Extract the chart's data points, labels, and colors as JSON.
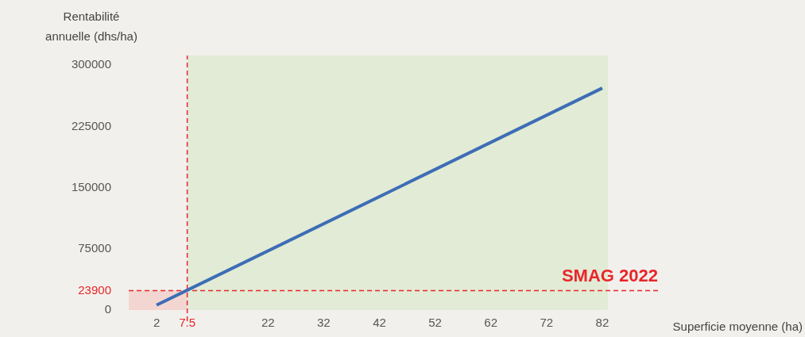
{
  "chart_data": {
    "type": "line",
    "xlabel": "Superficie moyenne (ha)",
    "ylabel": "Rentabilité annuelle (dhs/ha)",
    "x": [
      2,
      82
    ],
    "series": [
      {
        "color": "#3d6db5",
        "values": [
          6000,
          272000
        ]
      }
    ],
    "xlim": [
      -3,
      92
    ],
    "xticks": [
      2,
      7.5,
      22,
      32,
      42,
      52,
      62,
      72,
      82
    ],
    "ylim": [
      0,
      312000
    ],
    "yticks": [
      0,
      23900,
      75000,
      150000,
      225000,
      300000
    ],
    "ref_lines": [
      {
        "axis": "y",
        "value": 23900,
        "label": "SMAG 2022",
        "color": "#e8262a",
        "line_style": "dashed"
      },
      {
        "axis": "x",
        "value": 7.5,
        "color": "#e8262a",
        "line_style": "dashed"
      }
    ],
    "bands": [
      {
        "axis": "x",
        "from": 7.5,
        "to": 83,
        "color": "#e2ebd6"
      },
      {
        "axis": "y",
        "from": 0,
        "to": 23900,
        "color": "#f3d6d1"
      }
    ],
    "grid": false,
    "legend": false,
    "marker": "none",
    "line_style": "solid"
  }
}
